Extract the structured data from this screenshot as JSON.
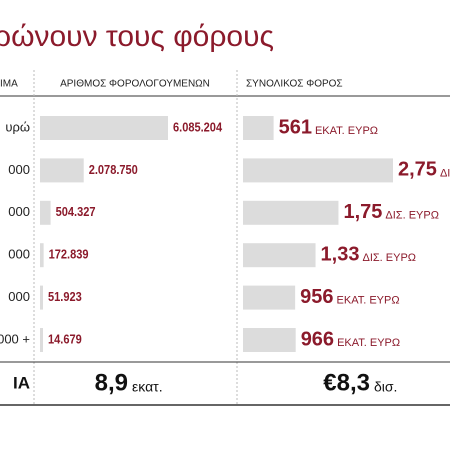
{
  "title": "ρώνουν τους φόρους",
  "table": {
    "headers": [
      "ΙΜΑ",
      "ΑΡΙΘΜΟΣ ΦΟΡΟΛΟΓΟΥΜΕΝΩΝ",
      "ΣΥΝΟΛΙΚΟΣ ΦΟΡΟΣ"
    ],
    "rows": [
      {
        "label": "υρώ",
        "count": 6085204,
        "count_label": "6.085.204",
        "tax": 561,
        "tax_label": "561",
        "tax_unit": "ΕΚΑΤ. ΕΥΡΩ"
      },
      {
        "label": "000",
        "count": 2078750,
        "count_label": "2.078.750",
        "tax": 2750,
        "tax_label": "2,75",
        "tax_unit": "ΔΙ"
      },
      {
        "label": "000",
        "count": 504327,
        "count_label": "504.327",
        "tax": 1750,
        "tax_label": "1,75",
        "tax_unit": "ΔΙΣ. ΕΥΡΩ"
      },
      {
        "label": "000",
        "count": 172839,
        "count_label": "172.839",
        "tax": 1330,
        "tax_label": "1,33",
        "tax_unit": "ΔΙΣ. ΕΥΡΩ"
      },
      {
        "label": "000",
        "count": 51923,
        "count_label": "51.923",
        "tax": 956,
        "tax_label": "956",
        "tax_unit": "ΕΚΑΤ. ΕΥΡΩ"
      },
      {
        "label": "000 +",
        "count": 14679,
        "count_label": "14.679",
        "tax": 966,
        "tax_label": "966",
        "tax_unit": "ΕΚΑΤ. ΕΥΡΩ"
      }
    ],
    "total": {
      "label": "ΙΑ",
      "count": "8,9",
      "count_unit": "εκατ.",
      "tax": "€8,3",
      "tax_unit": "δισ."
    }
  }
}
